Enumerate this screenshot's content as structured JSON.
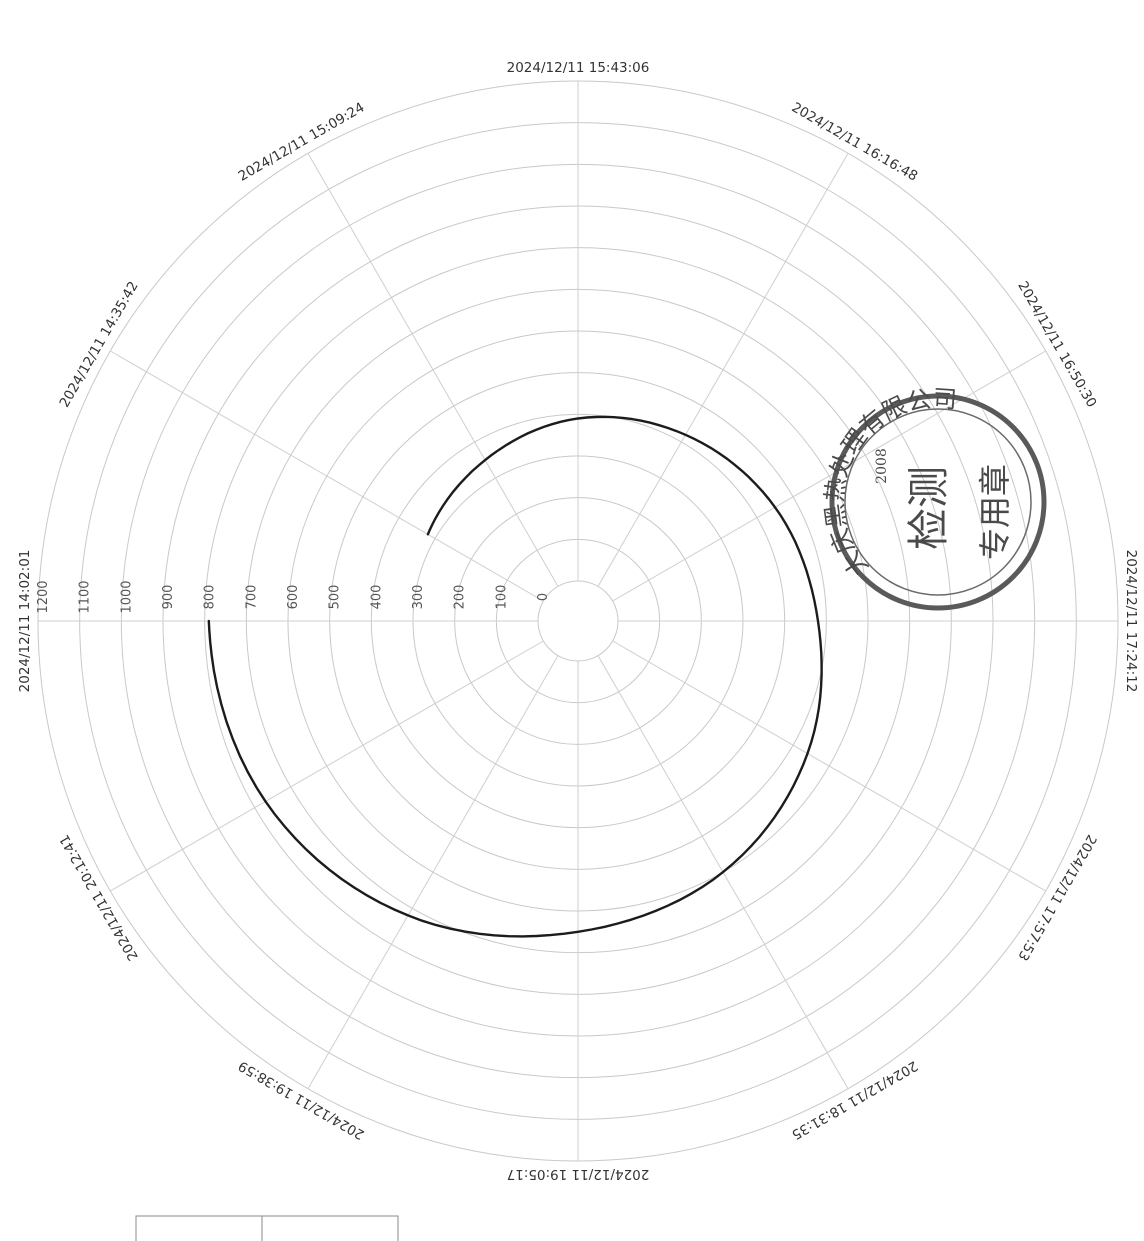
{
  "chart_data": {
    "type": "polar-line",
    "theta_labels": [
      "2024/12/11 15:43:06",
      "2024/12/11 16:16:48",
      "2024/12/11 16:50:30",
      "2024/12/11 17:24:12",
      "2024/12/11 17:57:53",
      "2024/12/11 18:31:35",
      "2024/12/11 19:05:17",
      "2024/12/11 19:38:59",
      "2024/12/11 20:12:41",
      "2024/12/11 14:02:01",
      "2024/12/11 14:35:42",
      "2024/12/11 15:09:24"
    ],
    "r_ticks": [
      0,
      100,
      200,
      300,
      400,
      500,
      600,
      700,
      800,
      900,
      1000,
      1100,
      1200
    ],
    "rlim": [
      0,
      1200
    ],
    "grid": true,
    "series": [
      {
        "points": [
          {
            "theta_deg": 300,
            "r": 320
          },
          {
            "theta_deg": 330,
            "r": 350
          },
          {
            "theta_deg": 0,
            "r": 390
          },
          {
            "theta_deg": 30,
            "r": 420
          },
          {
            "theta_deg": 60,
            "r": 450
          },
          {
            "theta_deg": 90,
            "r": 480
          },
          {
            "theta_deg": 120,
            "r": 540
          },
          {
            "theta_deg": 150,
            "r": 600
          },
          {
            "theta_deg": 180,
            "r": 650
          },
          {
            "theta_deg": 210,
            "r": 720
          },
          {
            "theta_deg": 240,
            "r": 770
          },
          {
            "theta_deg": 270,
            "r": 790
          }
        ]
      }
    ]
  },
  "stamp": {
    "outer_text": "大庆黑热处理有限公司",
    "center_text": "检测",
    "bottom_text": "专用章",
    "side_text": "2008"
  }
}
